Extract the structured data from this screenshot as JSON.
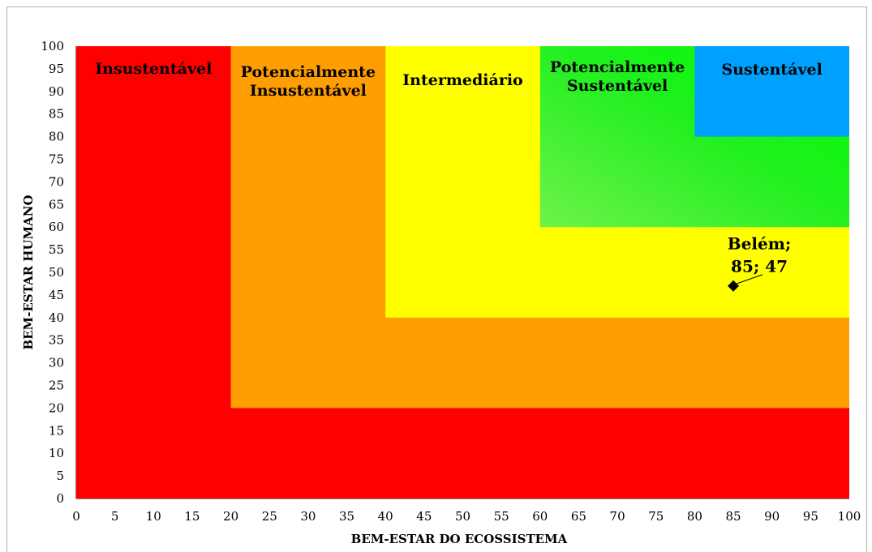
{
  "chart_data": {
    "type": "scatter",
    "xlabel": "BEM-ESTAR DO ECOSSISTEMA",
    "ylabel": "BEM-ESTAR HUMANO",
    "xlim": [
      0,
      100
    ],
    "ylim": [
      0,
      100
    ],
    "xticks": [
      0,
      5,
      10,
      15,
      20,
      25,
      30,
      35,
      40,
      45,
      50,
      55,
      60,
      65,
      70,
      75,
      80,
      85,
      90,
      95,
      100
    ],
    "yticks": [
      0,
      5,
      10,
      15,
      20,
      25,
      30,
      35,
      40,
      45,
      50,
      55,
      60,
      65,
      70,
      75,
      80,
      85,
      90,
      95,
      100
    ],
    "grid": false,
    "zones": [
      {
        "label_lines": [
          "Insustentável"
        ],
        "min": 0,
        "color": "#ff0000",
        "color_light": "#ff2a2a"
      },
      {
        "label_lines": [
          "Potencialmente",
          "Insustentável"
        ],
        "min": 20,
        "color": "#ff9e00",
        "color_light": "#ffae20"
      },
      {
        "label_lines": [
          "Intermediário"
        ],
        "min": 40,
        "color": "#ffff00",
        "color_light": "#ffff3a"
      },
      {
        "label_lines": [
          "Potencialmente",
          "Sustentável"
        ],
        "min": 60,
        "color": "#2ee82e",
        "color_light": "#66ee44",
        "color_bright": "#00ff00"
      },
      {
        "label_lines": [
          "Sustentável"
        ],
        "min": 80,
        "color": "#00a0ff",
        "color_light": "#20aaff"
      }
    ],
    "points": [
      {
        "x": 85,
        "y": 47,
        "label_lines": [
          "Belém;",
          "85; 47"
        ],
        "color": "#000000"
      }
    ]
  }
}
